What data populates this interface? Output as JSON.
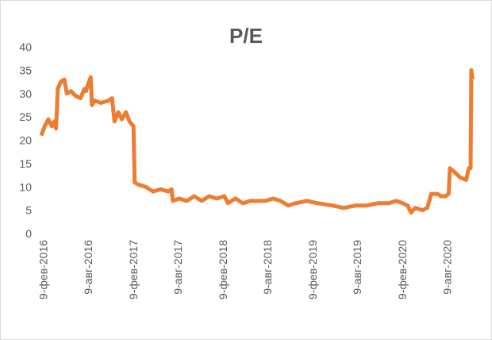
{
  "chart_data": {
    "type": "line",
    "title": "P/E",
    "series": [
      {
        "name": "P/E",
        "color": "#ed7d31",
        "x": [
          "2016-02-01",
          "2016-02-15",
          "2016-03-01",
          "2016-03-15",
          "2016-03-25",
          "2016-04-01",
          "2016-04-08",
          "2016-04-20",
          "2016-05-05",
          "2016-05-15",
          "2016-06-01",
          "2016-06-20",
          "2016-07-10",
          "2016-07-25",
          "2016-08-01",
          "2016-08-09",
          "2016-08-20",
          "2016-08-25",
          "2016-09-05",
          "2016-10-01",
          "2016-11-01",
          "2016-11-15",
          "2016-11-25",
          "2016-12-10",
          "2016-12-25",
          "2017-01-10",
          "2017-01-25",
          "2017-02-10",
          "2017-02-15",
          "2017-03-01",
          "2017-04-01",
          "2017-05-01",
          "2017-06-01",
          "2017-07-01",
          "2017-07-15",
          "2017-07-20",
          "2017-08-15",
          "2017-09-15",
          "2017-10-15",
          "2017-11-15",
          "2017-12-15",
          "2018-01-15",
          "2018-02-15",
          "2018-03-01",
          "2018-04-01",
          "2018-05-01",
          "2018-06-01",
          "2018-07-01",
          "2018-08-01",
          "2018-09-01",
          "2018-10-01",
          "2018-11-01",
          "2018-12-01",
          "2019-01-15",
          "2019-03-01",
          "2019-05-01",
          "2019-06-15",
          "2019-08-01",
          "2019-09-15",
          "2019-11-01",
          "2019-12-15",
          "2020-01-15",
          "2020-02-10",
          "2020-03-01",
          "2020-03-15",
          "2020-04-01",
          "2020-05-01",
          "2020-05-20",
          "2020-06-05",
          "2020-07-01",
          "2020-07-15",
          "2020-08-01",
          "2020-08-15",
          "2020-08-20",
          "2020-09-01",
          "2020-10-01",
          "2020-10-25",
          "2020-11-05",
          "2020-11-12",
          "2020-11-15",
          "2020-11-20"
        ],
        "values": [
          21,
          23,
          24.5,
          23,
          24,
          22.5,
          31,
          32.5,
          33,
          30,
          30.5,
          29.5,
          29,
          31,
          30.5,
          32,
          33.5,
          27.5,
          28.5,
          28,
          28.5,
          29,
          24,
          26,
          24.5,
          26,
          24,
          23,
          11,
          10.5,
          10,
          9,
          9.5,
          9,
          9.5,
          7,
          7.5,
          7,
          8,
          7,
          8,
          7.5,
          8,
          6.5,
          7.5,
          6.5,
          7,
          7,
          7,
          7.5,
          7,
          6,
          6.5,
          7,
          6.5,
          6,
          5.5,
          6,
          6,
          6.5,
          6.5,
          7,
          6.5,
          6,
          4.5,
          5.5,
          5,
          5.5,
          8.5,
          8.5,
          8,
          8,
          8.5,
          14,
          13.5,
          12,
          11.5,
          14,
          14,
          35,
          33
        ]
      }
    ],
    "xlim": [
      "2016-02-01",
      "2020-11-25"
    ],
    "xticks": [
      {
        "value": "2016-02-09",
        "label": "9-фев-2016"
      },
      {
        "value": "2016-08-09",
        "label": "9-авг-2016"
      },
      {
        "value": "2017-02-09",
        "label": "9-фев-2017"
      },
      {
        "value": "2017-08-09",
        "label": "9-авг-2017"
      },
      {
        "value": "2018-02-09",
        "label": "9-фев-2018"
      },
      {
        "value": "2018-08-09",
        "label": "9-авг-2018"
      },
      {
        "value": "2019-02-09",
        "label": "9-фев-2019"
      },
      {
        "value": "2019-08-09",
        "label": "9-авг-2019"
      },
      {
        "value": "2020-02-09",
        "label": "9-фев-2020"
      },
      {
        "value": "2020-08-09",
        "label": "9-авг-2020"
      }
    ],
    "ylim": [
      0,
      40
    ],
    "yticks": [
      0,
      5,
      10,
      15,
      20,
      25,
      30,
      35,
      40
    ],
    "grid": false
  }
}
